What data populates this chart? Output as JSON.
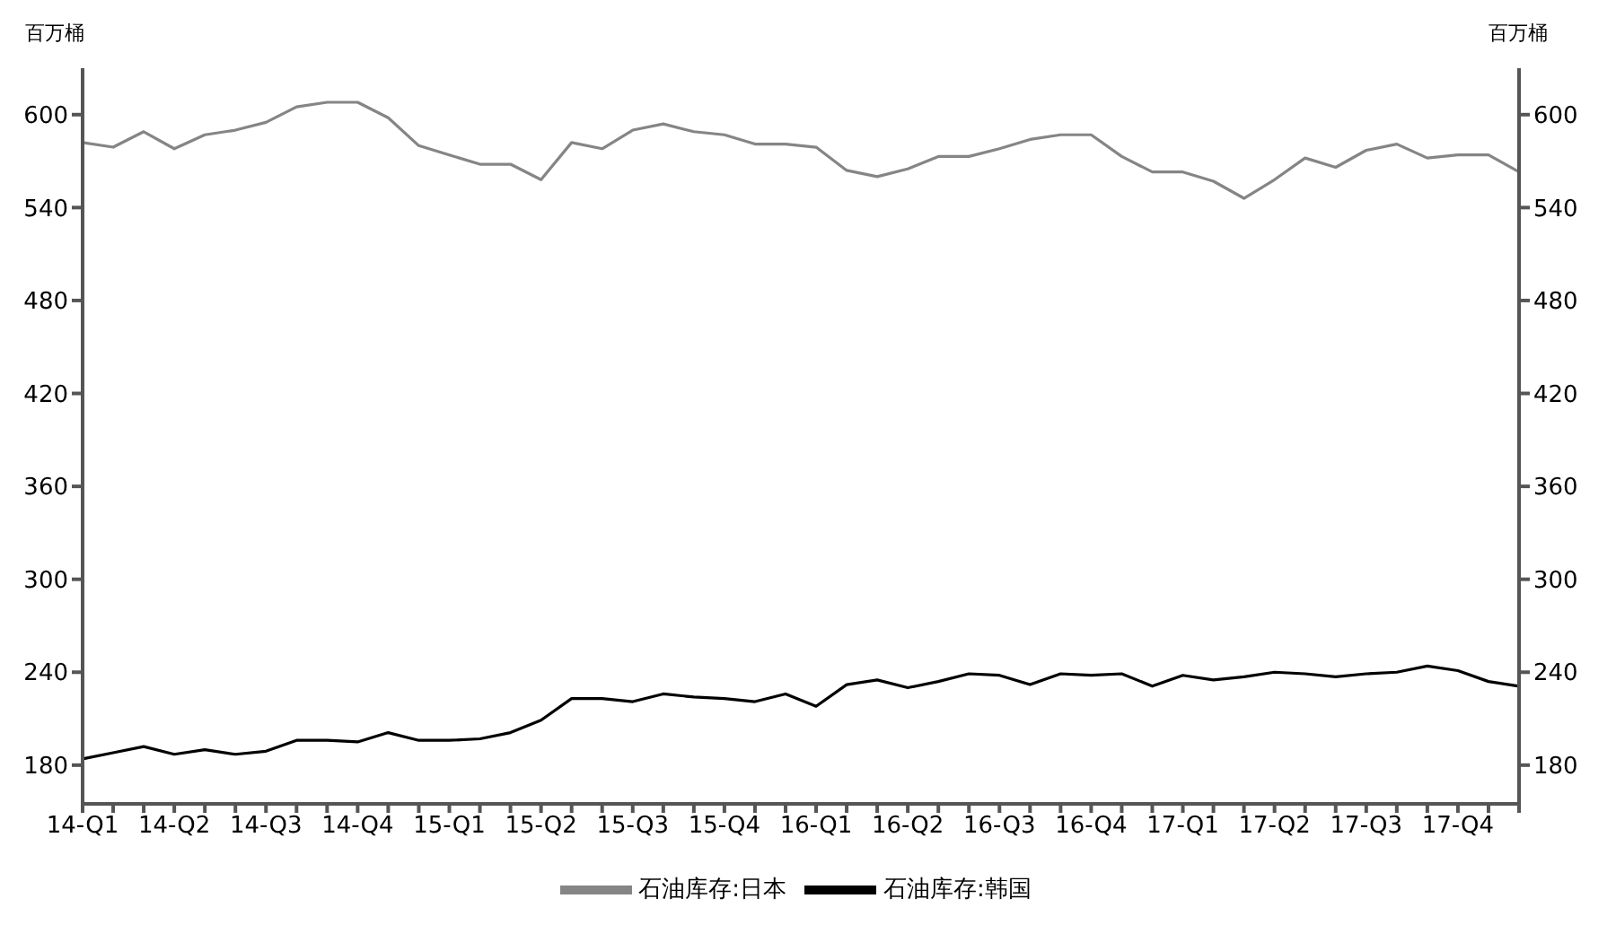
{
  "chart_data": {
    "type": "line",
    "ylabel": "百万桶",
    "y2label": "百万桶",
    "categories": [
      "14-Q1",
      null,
      null,
      "14-Q2",
      null,
      null,
      "14-Q3",
      null,
      null,
      "14-Q4",
      null,
      null,
      "15-Q1",
      null,
      null,
      "15-Q2",
      null,
      null,
      "15-Q3",
      null,
      null,
      "15-Q4",
      null,
      null,
      "16-Q1",
      null,
      null,
      "16-Q2",
      null,
      null,
      "16-Q3",
      null,
      null,
      "16-Q4",
      null,
      null,
      "17-Q1",
      null,
      null,
      "17-Q2",
      null,
      null,
      "17-Q3",
      null,
      null,
      "17-Q4",
      null,
      null
    ],
    "series": [
      {
        "name": "石油库存:日本",
        "color": "#858585",
        "values": [
          582,
          579,
          589,
          578,
          587,
          590,
          595,
          605,
          608,
          608,
          598,
          580,
          574,
          568,
          568,
          558,
          582,
          578,
          590,
          594,
          589,
          587,
          581,
          581,
          579,
          564,
          560,
          565,
          573,
          573,
          578,
          584,
          587,
          587,
          573,
          563,
          563,
          557,
          546,
          558,
          572,
          566,
          577,
          581,
          572,
          574,
          574,
          563
        ]
      },
      {
        "name": "石油库存:韩国",
        "color": "#000000",
        "values": [
          184,
          188,
          192,
          187,
          190,
          187,
          189,
          196,
          196,
          195,
          201,
          196,
          196,
          197,
          201,
          209,
          223,
          223,
          221,
          226,
          224,
          223,
          221,
          226,
          218,
          232,
          235,
          230,
          234,
          239,
          238,
          232,
          239,
          238,
          239,
          231,
          238,
          235,
          237,
          240,
          239,
          237,
          239,
          240,
          244,
          241,
          234,
          231
        ]
      }
    ],
    "ylim": [
      155,
      630
    ],
    "yticks": [
      180,
      240,
      300,
      360,
      420,
      480,
      540,
      600
    ],
    "y2lim": [
      155,
      630
    ],
    "y2ticks": [
      180,
      240,
      300,
      360,
      420,
      480,
      540,
      600
    ],
    "grid": false,
    "legend": "bottom",
    "marker": "none",
    "line_style": "solid"
  }
}
